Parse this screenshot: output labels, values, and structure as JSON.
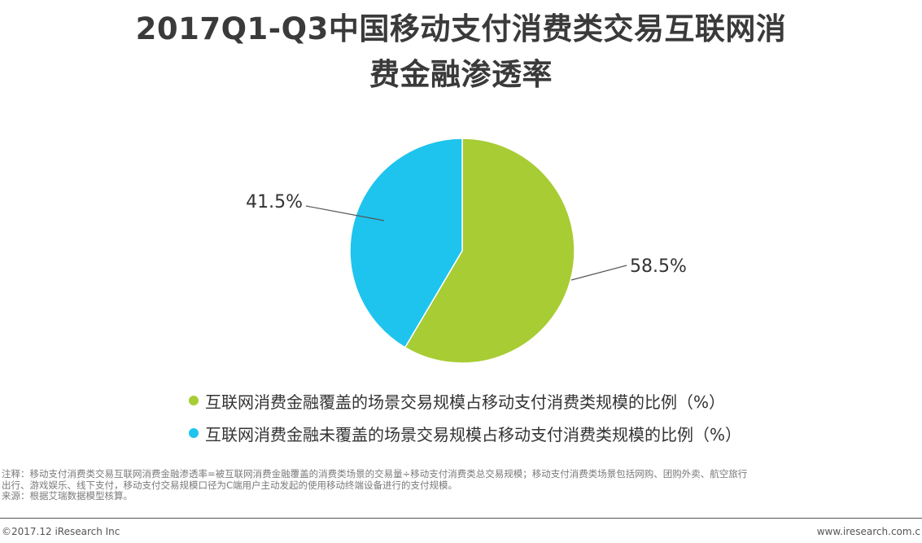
{
  "chart_data": {
    "type": "pie",
    "title_line1": "2017Q1-Q3中国移动支付消费类交易互联网消",
    "title_line2": "费金融渗透率",
    "slices": [
      {
        "label": "互联网消费金融覆盖的场景交易规模占移动支付消费类规模的比例（%）",
        "value": 58.5,
        "value_label": "58.5%",
        "color": "#a8cc34"
      },
      {
        "label": "互联网消费金融未覆盖的场景交易规模占移动支付消费类规模的比例（%）",
        "value": 41.5,
        "value_label": "41.5%",
        "color": "#1ec4ee"
      }
    ],
    "start_angle": "12 o'clock",
    "direction": "clockwise",
    "legend_position": "bottom"
  },
  "notes": {
    "line1": "注释：移动支付消费类交易互联网消费金融渗透率=被互联网消费金融覆盖的消费类场景的交易量÷移动支付消费类总交易规模；移动支付消费类场景包括网购、团购外卖、航空旅行",
    "line2": "出行、游戏娱乐、线下支付，移动支付交易规模口径为C端用户主动发起的使用移动终端设备进行的支付规模。",
    "line3": "来源：根据艾瑞数据模型核算。"
  },
  "footer": {
    "copyright": "©2017.12 iResearch Inc",
    "website": "www.iresearch.com.c"
  }
}
